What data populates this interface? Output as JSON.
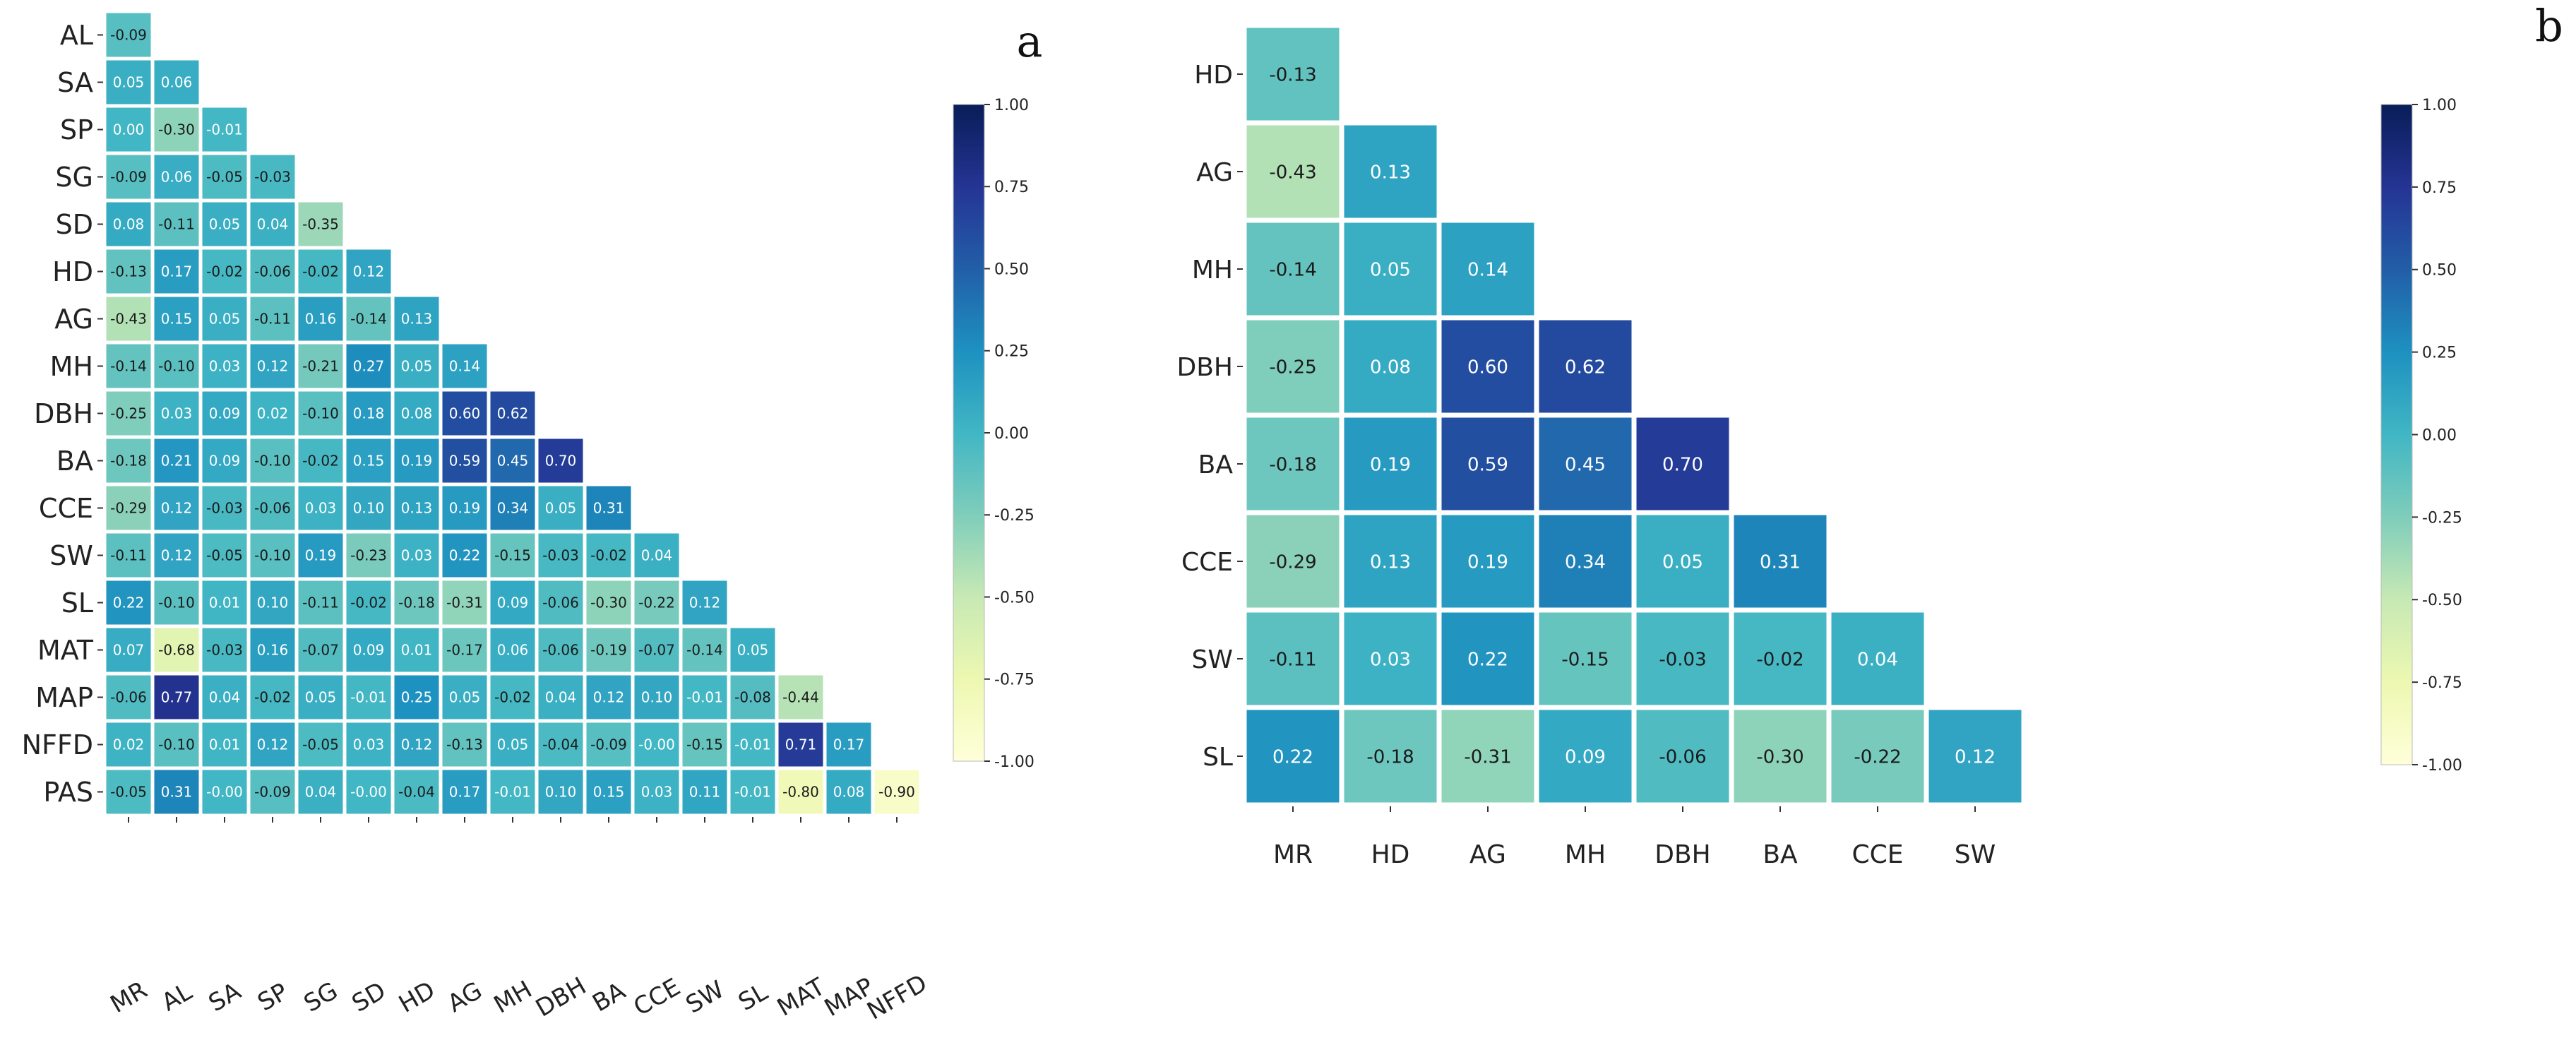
{
  "chart_data": [
    {
      "type": "heatmap",
      "panel_label": "a",
      "x_labels": [
        "MR",
        "AL",
        "SA",
        "SP",
        "SG",
        "SD",
        "HD",
        "AG",
        "MH",
        "DBH",
        "BA",
        "CCE",
        "SW",
        "SL",
        "MAT",
        "MAP",
        "NFFD"
      ],
      "y_labels": [
        "AL",
        "SA",
        "SP",
        "SG",
        "SD",
        "HD",
        "AG",
        "MH",
        "DBH",
        "BA",
        "CCE",
        "SW",
        "SL",
        "MAT",
        "MAP",
        "NFFD",
        "PAS"
      ],
      "cell_labels": [
        [
          "-0.09"
        ],
        [
          "0.05",
          "0.06"
        ],
        [
          "0.00",
          "-0.30",
          "-0.01"
        ],
        [
          "-0.09",
          "0.06",
          "-0.05",
          "-0.03"
        ],
        [
          "0.08",
          "-0.11",
          "0.05",
          "0.04",
          "-0.35"
        ],
        [
          "-0.13",
          "0.17",
          "-0.02",
          "-0.06",
          "-0.02",
          "0.12"
        ],
        [
          "-0.43",
          "0.15",
          "0.05",
          "-0.11",
          "0.16",
          "-0.14",
          "0.13"
        ],
        [
          "-0.14",
          "-0.10",
          "0.03",
          "0.12",
          "-0.21",
          "0.27",
          "0.05",
          "0.14"
        ],
        [
          "-0.25",
          "0.03",
          "0.09",
          "0.02",
          "-0.10",
          "0.18",
          "0.08",
          "0.60",
          "0.62"
        ],
        [
          "-0.18",
          "0.21",
          "0.09",
          "-0.10",
          "-0.02",
          "0.15",
          "0.19",
          "0.59",
          "0.45",
          "0.70"
        ],
        [
          "-0.29",
          "0.12",
          "-0.03",
          "-0.06",
          "0.03",
          "0.10",
          "0.13",
          "0.19",
          "0.34",
          "0.05",
          "0.31"
        ],
        [
          "-0.11",
          "0.12",
          "-0.05",
          "-0.10",
          "0.19",
          "-0.23",
          "0.03",
          "0.22",
          "-0.15",
          "-0.03",
          "-0.02",
          "0.04"
        ],
        [
          "0.22",
          "-0.10",
          "0.01",
          "0.10",
          "-0.11",
          "-0.02",
          "-0.18",
          "-0.31",
          "0.09",
          "-0.06",
          "-0.30",
          "-0.22",
          "0.12"
        ],
        [
          "0.07",
          "-0.68",
          "-0.03",
          "0.16",
          "-0.07",
          "0.09",
          "0.01",
          "-0.17",
          "0.06",
          "-0.06",
          "-0.19",
          "-0.07",
          "-0.14",
          "0.05"
        ],
        [
          "-0.06",
          "0.77",
          "0.04",
          "-0.02",
          "0.05",
          "-0.01",
          "0.25",
          "0.05",
          "-0.02",
          "0.04",
          "0.12",
          "0.10",
          "-0.01",
          "-0.08",
          "-0.44"
        ],
        [
          "0.02",
          "-0.10",
          "0.01",
          "0.12",
          "-0.05",
          "0.03",
          "0.12",
          "-0.13",
          "0.05",
          "-0.04",
          "-0.09",
          "-0.00",
          "-0.15",
          "-0.01",
          "0.71",
          "0.17"
        ],
        [
          "-0.05",
          "0.31",
          "-0.00",
          "-0.09",
          "0.04",
          "-0.00",
          "-0.04",
          "0.17",
          "-0.01",
          "0.10",
          "0.15",
          "0.03",
          "0.11",
          "-0.01",
          "-0.80",
          "0.08",
          "-0.90"
        ]
      ],
      "colorbar_ticks": [
        "1.00",
        "0.75",
        "0.50",
        "0.25",
        "0.00",
        "-0.25",
        "-0.50",
        "-0.75",
        "-1.00"
      ],
      "vmin": -1,
      "vmax": 1,
      "colormap": "YlGnBu"
    },
    {
      "type": "heatmap",
      "panel_label": "b",
      "x_labels": [
        "MR",
        "HD",
        "AG",
        "MH",
        "DBH",
        "BA",
        "CCE",
        "SW"
      ],
      "y_labels": [
        "HD",
        "AG",
        "MH",
        "DBH",
        "BA",
        "CCE",
        "SW",
        "SL"
      ],
      "cell_labels": [
        [
          "-0.13"
        ],
        [
          "-0.43",
          "0.13"
        ],
        [
          "-0.14",
          "0.05",
          "0.14"
        ],
        [
          "-0.25",
          "0.08",
          "0.60",
          "0.62"
        ],
        [
          "-0.18",
          "0.19",
          "0.59",
          "0.45",
          "0.70"
        ],
        [
          "-0.29",
          "0.13",
          "0.19",
          "0.34",
          "0.05",
          "0.31"
        ],
        [
          "-0.11",
          "0.03",
          "0.22",
          "-0.15",
          "-0.03",
          "-0.02",
          "0.04"
        ],
        [
          "0.22",
          "-0.18",
          "-0.31",
          "0.09",
          "-0.06",
          "-0.30",
          "-0.22",
          "0.12"
        ]
      ],
      "colorbar_ticks": [
        "1.00",
        "0.75",
        "0.50",
        "0.25",
        "0.00",
        "-0.25",
        "-0.50",
        "-0.75",
        "-1.00"
      ],
      "vmin": -1,
      "vmax": 1,
      "colormap": "YlGnBu"
    }
  ],
  "colors": {
    "scale": [
      "#ffffd9",
      "#edf8b1",
      "#c7e9b4",
      "#7fcdbb",
      "#41b6c4",
      "#1d91c0",
      "#225ea8",
      "#253494",
      "#081d58"
    ],
    "tick_text": "#222222",
    "grid": "#ffffff"
  }
}
